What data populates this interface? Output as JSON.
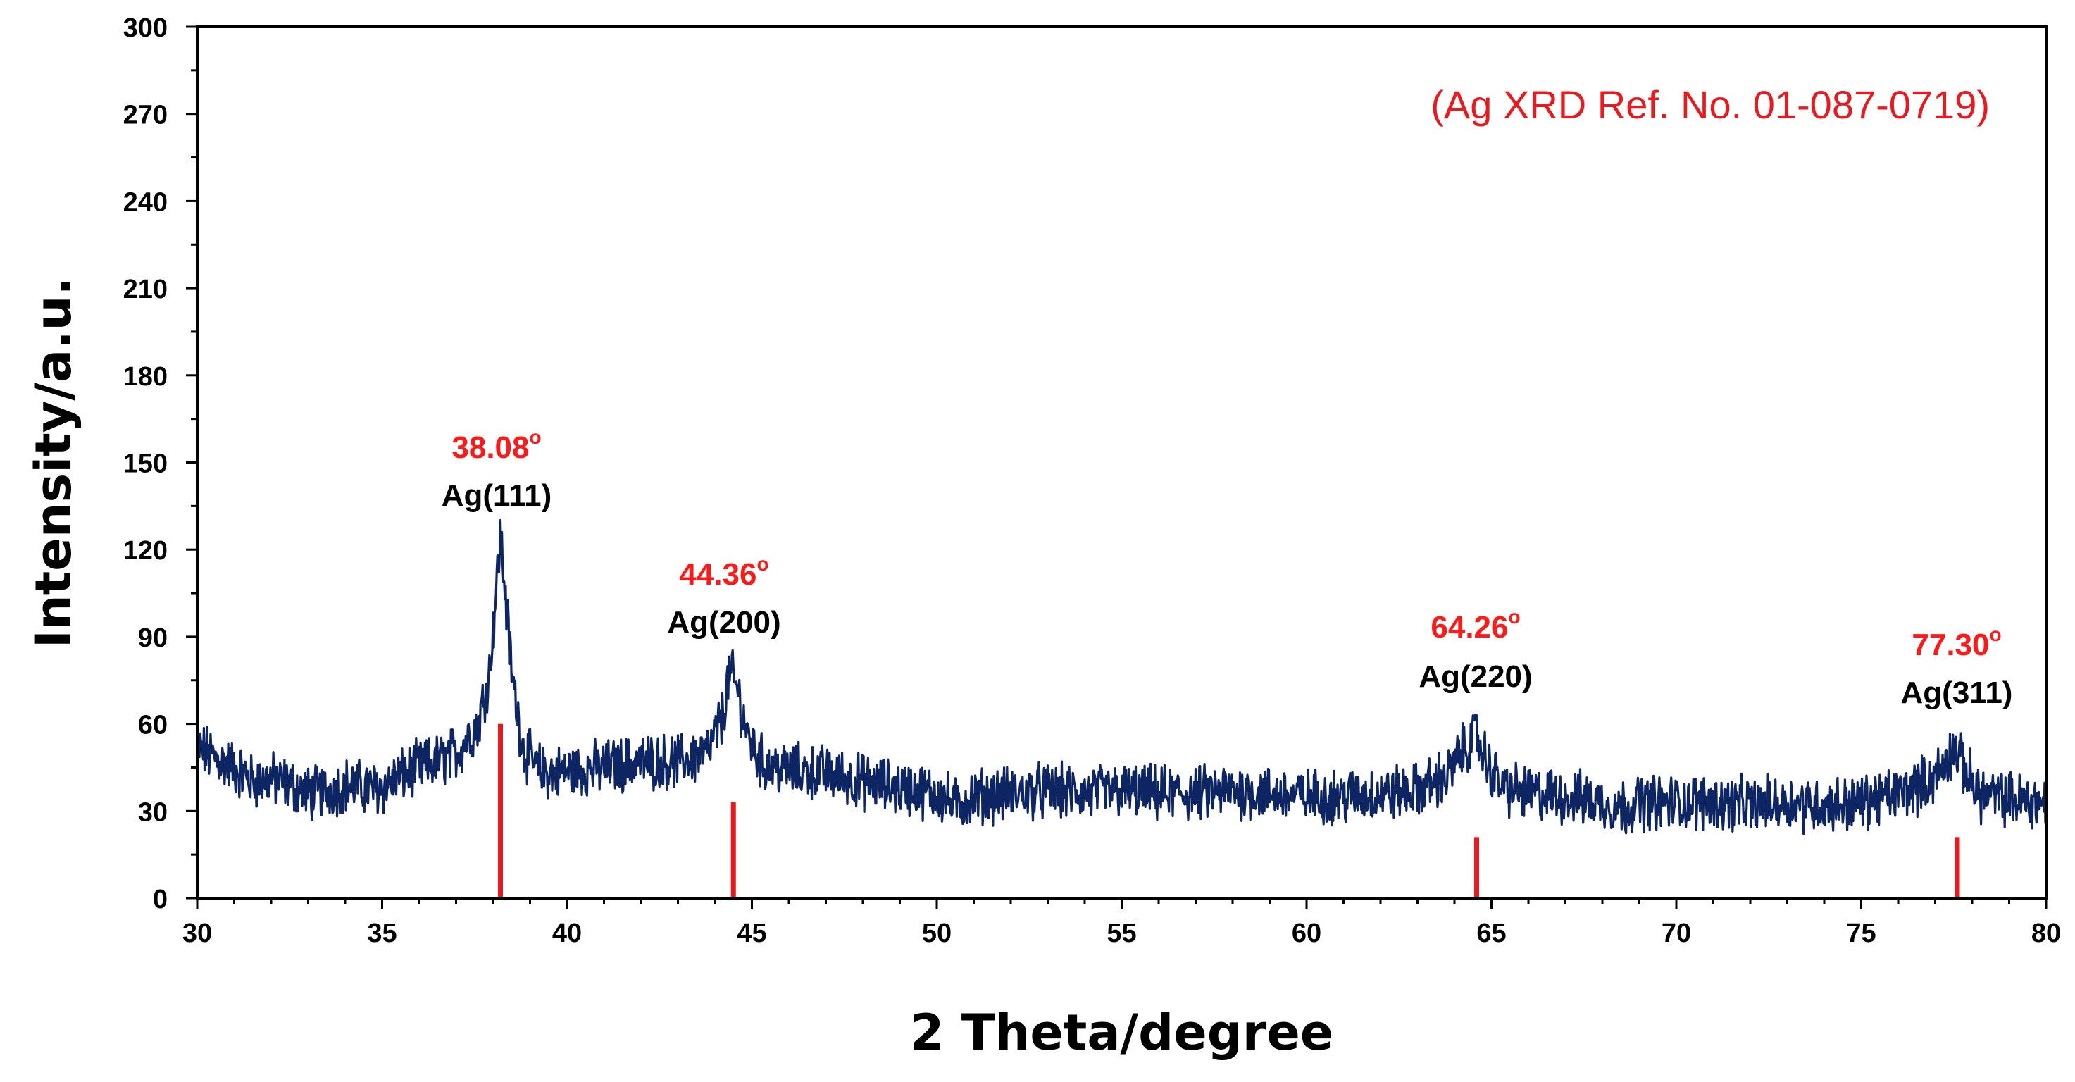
{
  "chart_data": {
    "type": "line",
    "title": "",
    "xlabel": "2 Theta/degree",
    "ylabel": "Intensity/a.u.",
    "xlim": [
      30,
      80
    ],
    "ylim": [
      0,
      300
    ],
    "x_ticks": [
      30,
      35,
      40,
      45,
      50,
      55,
      60,
      65,
      70,
      75,
      80
    ],
    "y_ticks": [
      0,
      30,
      60,
      90,
      120,
      150,
      180,
      210,
      240,
      270,
      300
    ],
    "grid": false,
    "reference_note": "(Ag XRD Ref. No. 01-087-0719)",
    "line_color": "#0d2563",
    "reference_color": "#e8191f",
    "series": [
      {
        "x": [
          30,
          30.5,
          31,
          31.5,
          32,
          32.5,
          33,
          33.5,
          34,
          34.5,
          35,
          35.5,
          36,
          36.5,
          37,
          37.3,
          37.6,
          37.9,
          38.1,
          38.2,
          38.3,
          38.5,
          38.8,
          39.2,
          39.7,
          40.2,
          41,
          42,
          43,
          43.8,
          44.2,
          44.4,
          44.6,
          44.9,
          45.3,
          46,
          47,
          48,
          49,
          50,
          50.5,
          51,
          52,
          53,
          54,
          55,
          56,
          57,
          58,
          59,
          60,
          61,
          62,
          63,
          63.8,
          64.3,
          64.6,
          64.9,
          65.3,
          66,
          67,
          68,
          68.5,
          69,
          70,
          71,
          72,
          73,
          74,
          75,
          76,
          76.8,
          77.2,
          77.5,
          77.8,
          78.2,
          79,
          80
        ],
        "y": [
          52,
          48,
          45,
          40,
          41,
          39,
          36,
          37,
          39,
          38,
          38,
          42,
          45,
          47,
          50,
          55,
          60,
          78,
          108,
          125,
          110,
          78,
          52,
          44,
          43,
          44,
          45,
          47,
          47,
          50,
          62,
          78,
          72,
          55,
          46,
          44,
          43,
          40,
          38,
          36,
          32,
          35,
          36,
          37,
          36,
          37,
          36,
          36,
          37,
          36,
          35,
          35,
          36,
          37,
          42,
          52,
          56,
          46,
          38,
          36,
          35,
          33,
          31,
          33,
          33,
          33,
          32,
          33,
          32,
          33,
          36,
          40,
          45,
          52,
          44,
          36,
          34,
          33
        ]
      }
    ],
    "peaks": [
      {
        "position": 38.2,
        "ref_height": 60,
        "label_angle": "38.08",
        "label_plane": "Ag(111)"
      },
      {
        "position": 44.5,
        "ref_height": 33,
        "label_angle": "44.36",
        "label_plane": "Ag(200)"
      },
      {
        "position": 64.6,
        "ref_height": 21,
        "label_angle": "64.26",
        "label_plane": "Ag(220)"
      },
      {
        "position": 77.6,
        "ref_height": 21,
        "label_angle": "77.30",
        "label_plane": "Ag(311)"
      }
    ]
  }
}
